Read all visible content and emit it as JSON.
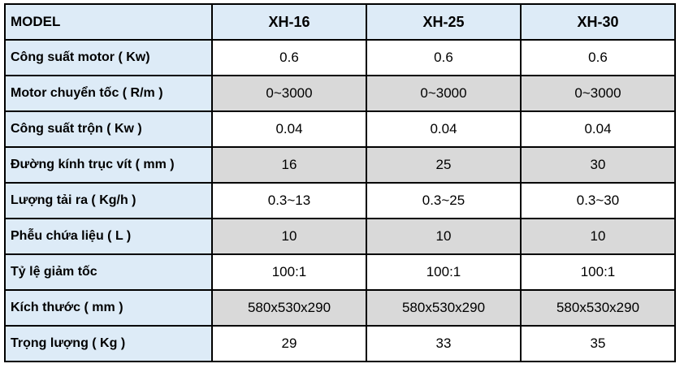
{
  "chart_data": {
    "type": "table",
    "title": "",
    "columns": [
      "MODEL",
      "XH-16",
      "XH-25",
      "XH-30"
    ],
    "rows": [
      {
        "label": "Công suất motor ( Kw)",
        "values": [
          "0.6",
          "0.6",
          "0.6"
        ],
        "shade": "white"
      },
      {
        "label": "Motor chuyển tốc ( R/m )",
        "values": [
          "0~3000",
          "0~3000",
          "0~3000"
        ],
        "shade": "gray"
      },
      {
        "label": "Công suất trộn ( Kw )",
        "values": [
          "0.04",
          "0.04",
          "0.04"
        ],
        "shade": "white"
      },
      {
        "label": "Đường kính trục vít ( mm )",
        "values": [
          "16",
          "25",
          "30"
        ],
        "shade": "gray"
      },
      {
        "label": "Lượng tải ra ( Kg/h )",
        "values": [
          "0.3~13",
          "0.3~25",
          "0.3~30"
        ],
        "shade": "white"
      },
      {
        "label": "Phễu chứa liệu ( L )",
        "values": [
          "10",
          "10",
          "10"
        ],
        "shade": "gray"
      },
      {
        "label": "Tỷ lệ giảm tốc",
        "values": [
          "100:1",
          "100:1",
          "100:1"
        ],
        "shade": "white"
      },
      {
        "label": "Kích thước ( mm )",
        "values": [
          "580x530x290",
          "580x530x290",
          "580x530x290"
        ],
        "shade": "gray"
      },
      {
        "label": "Trọng lượng ( Kg )",
        "values": [
          "29",
          "33",
          "35"
        ],
        "shade": "white"
      }
    ],
    "layout": {
      "grid": true,
      "header_bg": "#DDEBF7",
      "label_column_bg": "#DDEBF7",
      "alt_row_bg": "#D9D9D9",
      "row_bg": "#FFFFFF",
      "border_color": "#000000",
      "text_color": "#000000"
    }
  },
  "table": {
    "header": {
      "label": "MODEL",
      "models": [
        "XH-16",
        "XH-25",
        "XH-30"
      ]
    }
  }
}
